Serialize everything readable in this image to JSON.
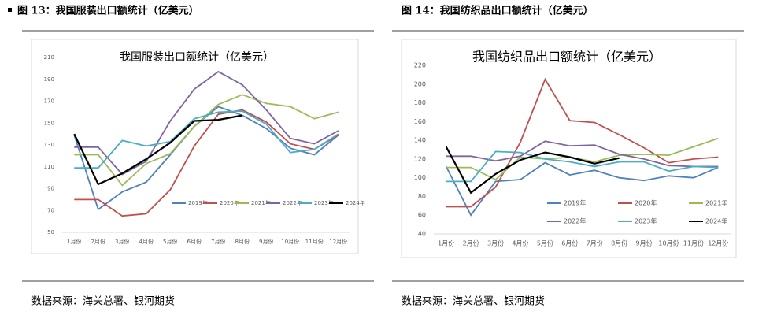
{
  "captions": [
    "图 13：我国服装出口额统计（亿美元）",
    "图 14：我国纺织品出口额统计（亿美元）"
  ],
  "sources": [
    "数据来源：海关总署、银河期货",
    "数据来源：海关总署、银河期货"
  ],
  "chart_data": [
    {
      "type": "line",
      "title": "我国服装出口额统计（亿美元）",
      "categories": [
        "1月份",
        "2月份",
        "3月份",
        "4月份",
        "5月份",
        "6月份",
        "7月份",
        "8月份",
        "9月份",
        "10月份",
        "11月份",
        "12月份"
      ],
      "ylim": [
        50,
        210
      ],
      "yticks": [
        50,
        70,
        90,
        110,
        130,
        150,
        170,
        190,
        210
      ],
      "grid": false,
      "legend": "bottom",
      "series": [
        {
          "name": "2019年",
          "color": "#4e81bd",
          "values": [
            139,
            71,
            87,
            96,
            121,
            147,
            165,
            157,
            145,
            127,
            121,
            139
          ]
        },
        {
          "name": "2020年",
          "color": "#c0504d",
          "values": [
            80,
            80,
            65,
            67,
            89,
            129,
            158,
            162,
            151,
            131,
            126,
            139
          ]
        },
        {
          "name": "2021年",
          "color": "#9bbb59",
          "values": [
            121,
            121,
            93,
            113,
            122,
            147,
            167,
            176,
            168,
            165,
            154,
            160
          ]
        },
        {
          "name": "2022年",
          "color": "#8064a2",
          "values": [
            128,
            128,
            103,
            115,
            152,
            181,
            197,
            185,
            162,
            136,
            131,
            143
          ]
        },
        {
          "name": "2023年",
          "color": "#4bacc6",
          "values": [
            109,
            109,
            134,
            129,
            133,
            154,
            160,
            161,
            149,
            123,
            126,
            140
          ]
        },
        {
          "name": "2024年",
          "color": "#000000",
          "values": [
            140,
            94,
            104,
            117,
            132,
            152,
            153,
            157,
            null,
            null,
            null,
            null
          ]
        }
      ]
    },
    {
      "type": "line",
      "title": "我国纺织品出口额统计（亿美元）",
      "categories": [
        "1月份",
        "2月份",
        "3月份",
        "4月份",
        "5月份",
        "6月份",
        "7月份",
        "8月份",
        "9月份",
        "10月份",
        "11月份",
        "12月份"
      ],
      "ylim": [
        40,
        220
      ],
      "yticks": [
        40,
        60,
        80,
        100,
        120,
        140,
        160,
        180,
        200,
        220
      ],
      "grid": false,
      "legend": "bottom",
      "series": [
        {
          "name": "2019年",
          "color": "#4e81bd",
          "values": [
            112,
            60,
            96,
            98,
            116,
            103,
            108,
            100,
            97,
            102,
            100,
            111
          ]
        },
        {
          "name": "2020年",
          "color": "#c0504d",
          "values": [
            69,
            69,
            90,
            138,
            205,
            161,
            159,
            146,
            132,
            116,
            120,
            122
          ]
        },
        {
          "name": "2021年",
          "color": "#9bbb59",
          "values": [
            111,
            111,
            98,
            122,
            120,
            122,
            117,
            124,
            125,
            124,
            133,
            142
          ]
        },
        {
          "name": "2022年",
          "color": "#8064a2",
          "values": [
            123,
            123,
            118,
            123,
            139,
            134,
            135,
            125,
            120,
            113,
            112,
            112
          ]
        },
        {
          "name": "2023年",
          "color": "#4bacc6",
          "values": [
            96,
            96,
            128,
            127,
            120,
            117,
            112,
            117,
            117,
            107,
            112,
            111
          ]
        },
        {
          "name": "2024年",
          "color": "#000000",
          "values": [
            133,
            84,
            104,
            119,
            127,
            122,
            115,
            121,
            null,
            null,
            null,
            null
          ]
        }
      ]
    }
  ]
}
